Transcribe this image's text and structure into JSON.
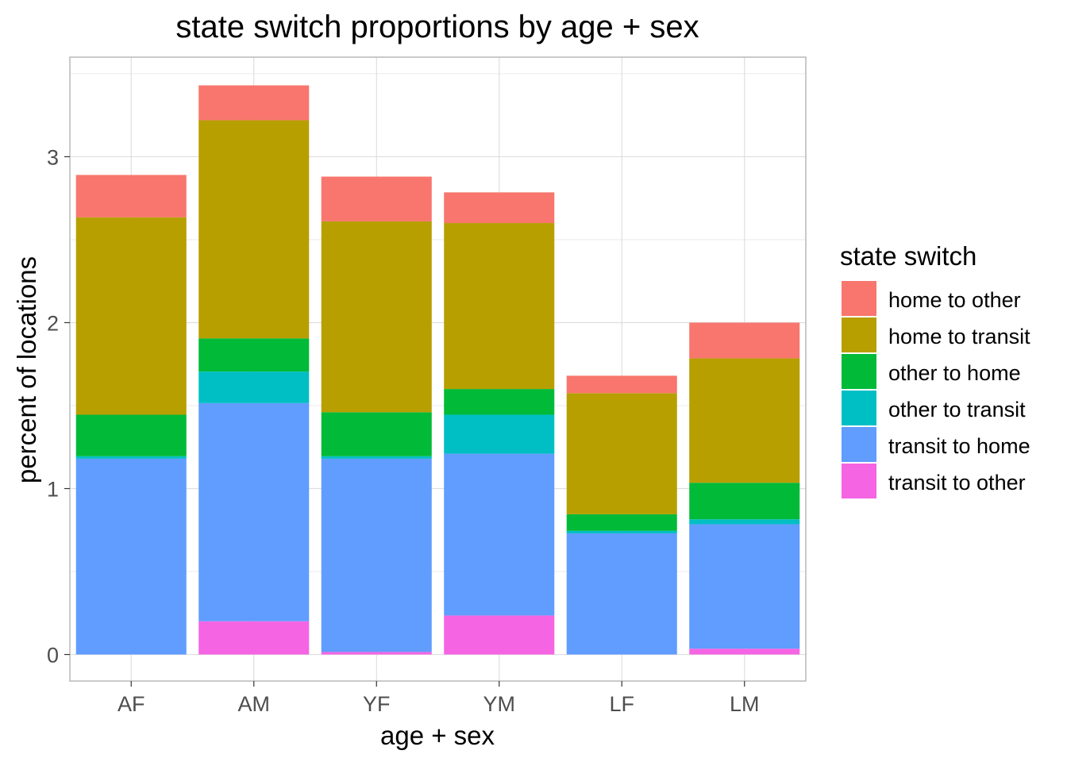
{
  "chart_data": {
    "type": "bar",
    "stacked": true,
    "title": "state switch proportions by age + sex",
    "xlabel": "age + sex",
    "ylabel": "percent of locations",
    "categories": [
      "AF",
      "AM",
      "YF",
      "YM",
      "LF",
      "LM"
    ],
    "y_ticks": [
      "0",
      "1",
      "2",
      "3"
    ],
    "ylim": [
      -0.16,
      3.6
    ],
    "grid": true,
    "legend": {
      "title": "state switch",
      "placement": "right"
    },
    "series": [
      {
        "name": "transit to other",
        "color": "#F564E3",
        "values": [
          0.0,
          0.2,
          0.015,
          0.235,
          0.0,
          0.035
        ]
      },
      {
        "name": "transit to home",
        "color": "#619CFF",
        "values": [
          1.18,
          1.315,
          1.165,
          0.975,
          0.73,
          0.75
        ]
      },
      {
        "name": "other to transit",
        "color": "#00BFC4",
        "values": [
          0.015,
          0.19,
          0.015,
          0.235,
          0.015,
          0.03
        ]
      },
      {
        "name": "other to home",
        "color": "#00BA38",
        "values": [
          0.25,
          0.2,
          0.265,
          0.155,
          0.1,
          0.22
        ]
      },
      {
        "name": "home to transit",
        "color": "#B79F00",
        "values": [
          1.19,
          1.315,
          1.15,
          1.0,
          0.73,
          0.75
        ]
      },
      {
        "name": "home to other",
        "color": "#F8766D",
        "values": [
          0.255,
          0.21,
          0.27,
          0.185,
          0.105,
          0.215
        ]
      }
    ],
    "legend_order": [
      "home to other",
      "home to transit",
      "other to home",
      "other to transit",
      "transit to home",
      "transit to other"
    ]
  }
}
